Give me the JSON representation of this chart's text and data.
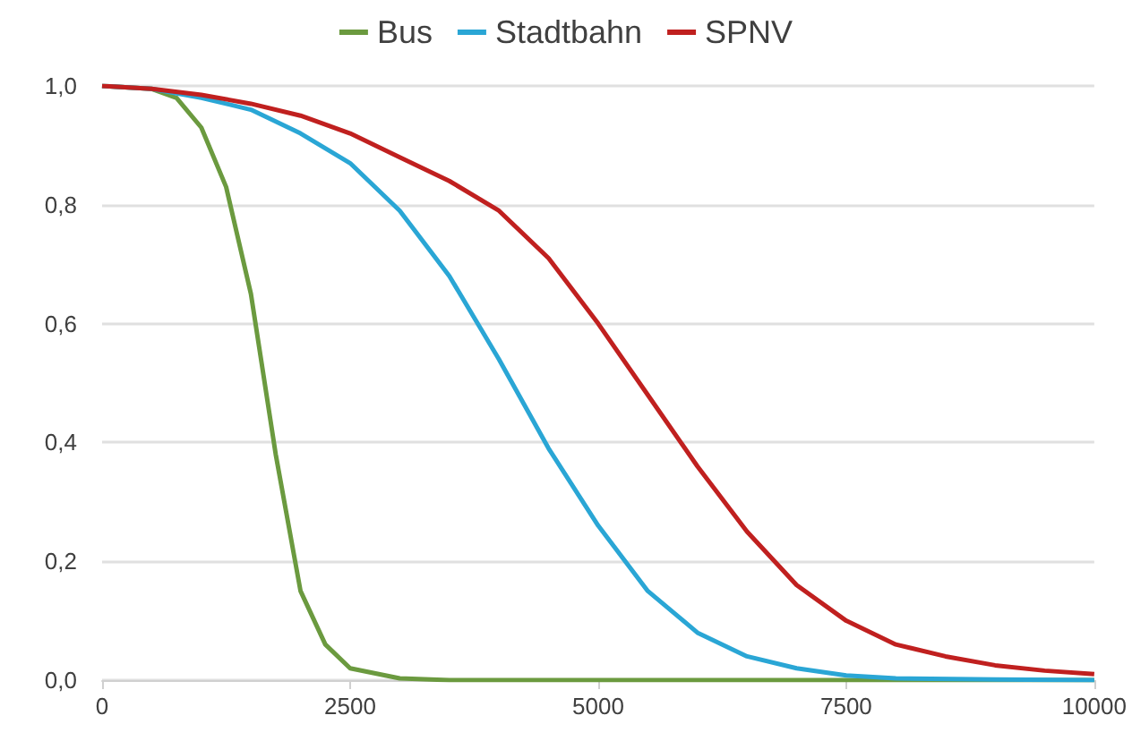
{
  "chart_data": {
    "type": "line",
    "legend": "top",
    "grid": "y",
    "marker": "none",
    "line_style": "solid",
    "xlim": [
      0,
      10000
    ],
    "xticks": [
      0,
      2500,
      5000,
      7500,
      10000
    ],
    "ylim": [
      0,
      1
    ],
    "yticks": [
      {
        "value": 0,
        "label": "0,0"
      },
      {
        "value": 0.2,
        "label": "0,2"
      },
      {
        "value": 0.4,
        "label": "0,4"
      },
      {
        "value": 0.6,
        "label": "0,6"
      },
      {
        "value": 0.8,
        "label": "0,8"
      },
      {
        "value": 1,
        "label": "1,0"
      }
    ],
    "series": [
      {
        "name": "Bus",
        "color": "#6b9a3f",
        "x": [
          0,
          500,
          750,
          1000,
          1250,
          1500,
          1750,
          2000,
          2250,
          2500,
          3000,
          3500,
          4000,
          6000,
          8000,
          10000
        ],
        "values": [
          1,
          0.995,
          0.98,
          0.93,
          0.83,
          0.65,
          0.38,
          0.15,
          0.06,
          0.02,
          0.003,
          0,
          0,
          0,
          0,
          0
        ]
      },
      {
        "name": "Stadtbahn",
        "color": "#2aa6d5",
        "x": [
          0,
          500,
          1000,
          1500,
          2000,
          2500,
          3000,
          3500,
          4000,
          4500,
          5000,
          5500,
          6000,
          6500,
          7000,
          7500,
          8000,
          9000,
          10000
        ],
        "values": [
          1,
          0.995,
          0.98,
          0.96,
          0.92,
          0.87,
          0.79,
          0.68,
          0.54,
          0.39,
          0.26,
          0.15,
          0.08,
          0.04,
          0.02,
          0.008,
          0.003,
          0.001,
          0
        ]
      },
      {
        "name": "SPNV",
        "color": "#c0201f",
        "x": [
          0,
          500,
          1000,
          1500,
          2000,
          2500,
          3000,
          3500,
          4000,
          4500,
          5000,
          5500,
          6000,
          6500,
          7000,
          7500,
          8000,
          8500,
          9000,
          9500,
          10000
        ],
        "values": [
          1,
          0.995,
          0.985,
          0.97,
          0.95,
          0.92,
          0.88,
          0.84,
          0.79,
          0.71,
          0.6,
          0.48,
          0.36,
          0.25,
          0.16,
          0.1,
          0.06,
          0.04,
          0.025,
          0.016,
          0.01
        ]
      }
    ]
  }
}
